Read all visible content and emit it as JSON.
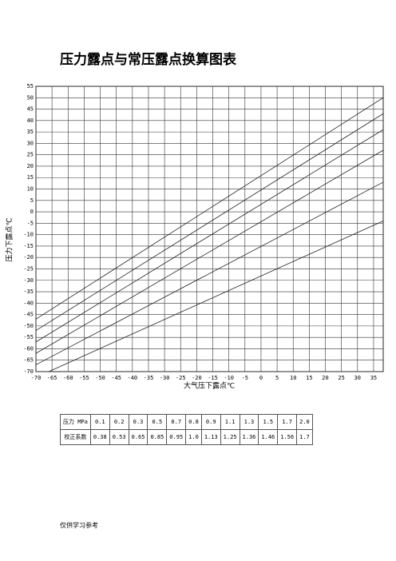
{
  "header": {
    "title": "压力露点与常压露点换算图表"
  },
  "chart_data": {
    "type": "line",
    "y_label": "压力下露点℃",
    "x_label": "大气压下露点℃",
    "xlim": [
      -70,
      38
    ],
    "ylim": [
      -70,
      55
    ],
    "xticks": [
      -70,
      -65,
      -60,
      -55,
      -50,
      -45,
      -40,
      -35,
      -30,
      -25,
      -20,
      -15,
      -10,
      -5,
      0,
      5,
      10,
      15,
      20,
      25,
      30,
      35
    ],
    "yticks": [
      55,
      50,
      45,
      40,
      35,
      30,
      25,
      20,
      15,
      10,
      5,
      0,
      -5,
      -10,
      -15,
      -20,
      -25,
      -30,
      -35,
      -40,
      -45,
      -50,
      -55,
      -60,
      -65,
      -70
    ],
    "grid": true,
    "series": [
      {
        "color": "#222222",
        "x": [
          -70,
          38
        ],
        "values": [
          -47,
          50
        ]
      },
      {
        "color": "#222222",
        "x": [
          -70,
          38
        ],
        "values": [
          -52,
          43
        ]
      },
      {
        "color": "#222222",
        "x": [
          -70,
          38
        ],
        "values": [
          -57,
          36
        ]
      },
      {
        "color": "#222222",
        "x": [
          -70,
          38
        ],
        "values": [
          -62,
          27
        ]
      },
      {
        "color": "#222222",
        "x": [
          -70,
          38
        ],
        "values": [
          -67,
          13
        ]
      },
      {
        "color": "#222222",
        "x": [
          -66,
          38
        ],
        "values": [
          -70,
          -4
        ]
      }
    ]
  },
  "table": {
    "rows": [
      [
        "压力 MPa",
        "0.1",
        "0.2",
        "0.3",
        "0.5",
        "0.7",
        "0.8",
        "0.9",
        "1.1",
        "1.3",
        "1.5",
        "1.7",
        "2.0"
      ],
      [
        "校正系数",
        "0.38",
        "0.53",
        "0.65",
        "0.85",
        "0.95",
        "1.0",
        "1.13",
        "1.25",
        "1.36",
        "1.46",
        "1.56",
        "1.7"
      ]
    ]
  },
  "footer": "仅供学习参考"
}
